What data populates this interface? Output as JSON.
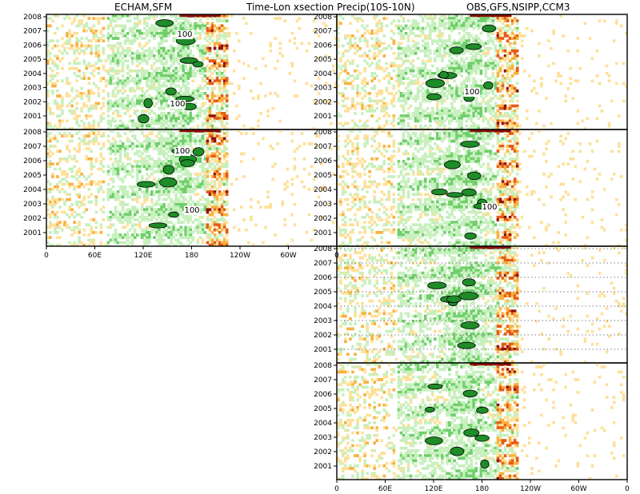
{
  "titles": {
    "left": "ECHAM,SFM",
    "center": "Time-Lon xsection Precip(10S-10N)",
    "right": "OBS,GFS,NSIPP,CCM3"
  },
  "colors": {
    "dark_green": "#1e8c28",
    "mid_green": "#6fcf6a",
    "light_green": "#c7f0be",
    "light_yellow": "#fde19a",
    "orange": "#f8b240",
    "dark_orange": "#e55a16",
    "dark_red": "#8c1208"
  },
  "chart_data": {
    "type": "heatmap",
    "variable": "Precip(10S-10N)",
    "x_tick_labels": [
      "0",
      "60E",
      "120E",
      "180",
      "120W",
      "60W",
      "0"
    ],
    "y_tick_labels": [
      "2001",
      "2002",
      "2003",
      "2004",
      "2005",
      "2006",
      "2007",
      "2008"
    ],
    "contour_value": "100",
    "panels": [
      {
        "id": "echam",
        "title_group": "ECHAM,SFM",
        "contour_labels": [
          "100",
          "100"
        ]
      },
      {
        "id": "sfm",
        "title_group": "ECHAM,SFM",
        "contour_labels": [
          "100",
          "100"
        ]
      },
      {
        "id": "obs",
        "title_group": "OBS,GFS,NSIPP,CCM3",
        "contour_labels": [
          "100"
        ]
      },
      {
        "id": "gfs",
        "title_group": "OBS,GFS,NSIPP,CCM3",
        "contour_labels": [
          "100"
        ]
      },
      {
        "id": "nsipp",
        "title_group": "OBS,GFS,NSIPP,CCM3",
        "contour_labels": [],
        "dotted_gridlines": true
      },
      {
        "id": "ccm3",
        "title_group": "OBS,GFS,NSIPP,CCM3",
        "contour_labels": []
      }
    ]
  }
}
